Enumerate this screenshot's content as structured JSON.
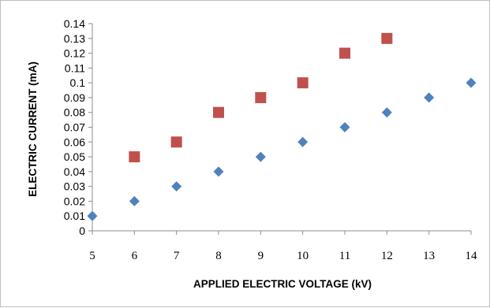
{
  "chart_data": {
    "type": "scatter",
    "title": "",
    "xlabel": "APPLIED ELECTRIC VOLTAGE (kV)",
    "ylabel": "ELECTRIC CURRENT (mA)",
    "xlim": [
      5,
      14
    ],
    "ylim": [
      0,
      0.14
    ],
    "x_ticks": [
      "5",
      "6",
      "7",
      "8",
      "9",
      "10",
      "11",
      "12",
      "13",
      "14"
    ],
    "y_ticks": [
      "0",
      "0.01",
      "0.02",
      "0.03",
      "0.04",
      "0.05",
      "0.06",
      "0.07",
      "0.08",
      "0.09",
      "0.1",
      "0.11",
      "0.12",
      "0.13",
      "0.14"
    ],
    "grid": false,
    "legend": "none",
    "series": [
      {
        "marker": "diamond",
        "color": "#4f81bd",
        "x": [
          5,
          6,
          7,
          8,
          9,
          10,
          11,
          12,
          13,
          14
        ],
        "y": [
          0.01,
          0.02,
          0.03,
          0.04,
          0.05,
          0.06,
          0.07,
          0.08,
          0.09,
          0.1
        ]
      },
      {
        "marker": "square",
        "color": "#c0504d",
        "x": [
          6,
          7,
          8,
          9,
          10,
          11,
          12
        ],
        "y": [
          0.05,
          0.06,
          0.08,
          0.09,
          0.1,
          0.12,
          0.13
        ]
      }
    ]
  }
}
